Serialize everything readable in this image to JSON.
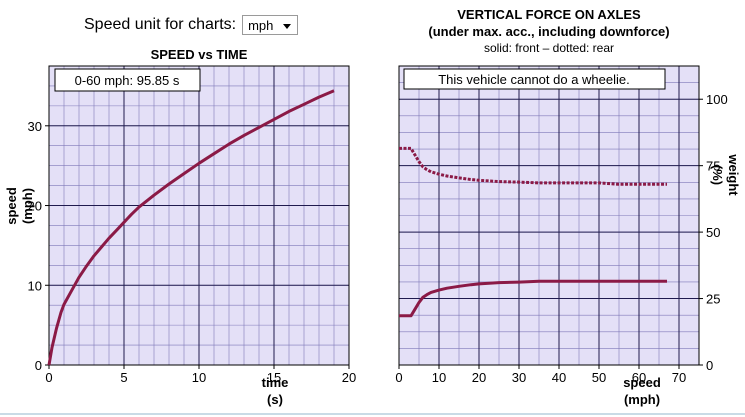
{
  "controls": {
    "unit_label": "Speed unit for charts:",
    "unit_value": "mph"
  },
  "colors": {
    "plot_background": "#e4e0f7",
    "minor_grid": "#7f78b8",
    "major_grid": "#1f1a4e",
    "series": "#8b1a46"
  },
  "chart_data": [
    {
      "type": "line",
      "title": "SPEED vs TIME",
      "xlabel": "time",
      "xlabel_unit": "(s)",
      "ylabel": "speed",
      "ylabel_unit": "(mph)",
      "xlim": [
        0,
        20
      ],
      "ylim": [
        0,
        37.5
      ],
      "xticks": [
        0,
        5,
        10,
        15,
        20
      ],
      "yticks": [
        0,
        10,
        20,
        30
      ],
      "grid": true,
      "annotation": "0-60 mph: 95.85 s",
      "series": [
        {
          "x": [
            0,
            0.2,
            0.5,
            0.8,
            1.0,
            1.5,
            2.0,
            2.5,
            3.0,
            3.5,
            4.0,
            4.5,
            5.0,
            5.5,
            6.0,
            7.0,
            8.0,
            9.0,
            10.0,
            11.0,
            12.0,
            13.0,
            14.0,
            15.0,
            16.0,
            17.0,
            18.0,
            19.0
          ],
          "y": [
            0,
            2.2,
            4.6,
            6.6,
            7.6,
            9.3,
            11.0,
            12.4,
            13.7,
            14.8,
            15.9,
            16.9,
            17.9,
            18.9,
            19.8,
            21.3,
            22.7,
            24.0,
            25.3,
            26.5,
            27.7,
            28.8,
            29.8,
            30.8,
            31.8,
            32.7,
            33.6,
            34.4
          ]
        }
      ]
    },
    {
      "type": "line",
      "title": "VERTICAL FORCE ON AXLES",
      "subtitle": "(under max. acc., including downforce)",
      "legend_note": "solid: front – dotted: rear",
      "annotation": "This vehicle cannot do a wheelie.",
      "xlabel": "speed",
      "xlabel_unit": "(mph)",
      "ylabel": "weight",
      "ylabel_unit": "(%)",
      "xlim": [
        0,
        75
      ],
      "ylim": [
        0,
        112.5
      ],
      "xticks": [
        0,
        10,
        20,
        30,
        40,
        50,
        60,
        70
      ],
      "yticks": [
        0,
        25,
        50,
        75,
        100
      ],
      "grid": true,
      "series": [
        {
          "style": "solid",
          "x": [
            0,
            3,
            4,
            5,
            6,
            7,
            8,
            10,
            12,
            15,
            18,
            20,
            25,
            30,
            35,
            40,
            45,
            50,
            55,
            60,
            67
          ],
          "y": [
            18.5,
            18.5,
            21.0,
            23.5,
            25.5,
            26.5,
            27.3,
            28.2,
            28.9,
            29.6,
            30.2,
            30.5,
            31.0,
            31.2,
            31.5,
            31.5,
            31.5,
            31.5,
            31.5,
            31.5,
            31.5
          ]
        },
        {
          "style": "dotted",
          "x": [
            0,
            3,
            4,
            5,
            6,
            7,
            8,
            10,
            12,
            15,
            18,
            20,
            25,
            30,
            35,
            40,
            45,
            50,
            55,
            60,
            67
          ],
          "y": [
            81.5,
            81.5,
            79.0,
            76.5,
            74.5,
            73.5,
            72.7,
            71.8,
            71.1,
            70.4,
            69.8,
            69.5,
            69.0,
            68.8,
            68.5,
            68.5,
            68.5,
            68.5,
            68.0,
            68.0,
            68.0
          ]
        }
      ]
    }
  ]
}
